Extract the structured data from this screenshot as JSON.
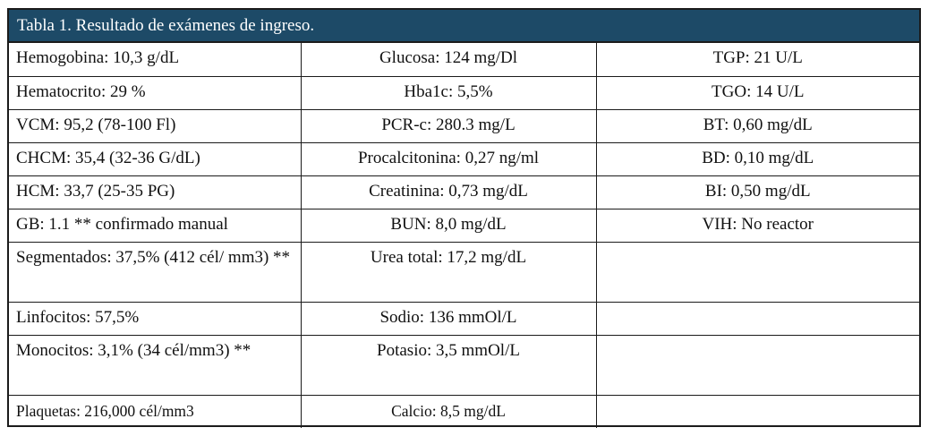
{
  "title": "Tabla 1. Resultado de exámenes de ingreso.",
  "rows": [
    [
      "Hemogobina: 10,3 g/dL",
      "Glucosa: 124 mg/Dl",
      "TGP: 21 U/L"
    ],
    [
      "Hematocrito:  29 %",
      "Hba1c: 5,5%",
      "TGO: 14 U/L"
    ],
    [
      "VCM: 95,2 (78-100 Fl)",
      "PCR-c: 280.3 mg/L",
      "BT: 0,60 mg/dL"
    ],
    [
      "CHCM: 35,4 (32-36 G/dL)",
      "Procalcitonina: 0,27 ng/ml",
      "BD: 0,10 mg/dL"
    ],
    [
      "HCM: 33,7 (25-35 PG)",
      "Creatinina: 0,73 mg/dL",
      "BI: 0,50 mg/dL"
    ],
    [
      "GB: 1.1  ** confirmado  manual",
      "BUN: 8,0 mg/dL",
      "VIH: No reactor"
    ],
    [
      "Segmentados: 37,5% (412 cél/ mm3) **",
      "Urea total: 17,2 mg/dL",
      ""
    ],
    [
      "Linfocitos: 57,5%",
      "Sodio: 136 mmOl/L",
      ""
    ],
    [
      "Monocitos: 3,1% (34 cél/mm3) **",
      "Potasio: 3,5 mmOl/L",
      ""
    ],
    [
      "Plaquetas: 216,000 cél/mm3",
      "Calcio: 8,5 mg/dL",
      ""
    ]
  ]
}
